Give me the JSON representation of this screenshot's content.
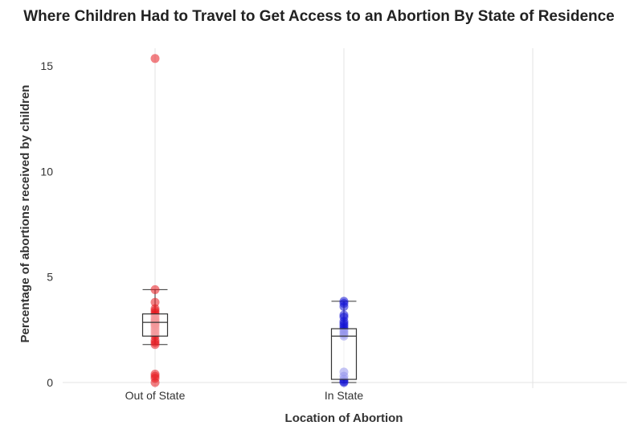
{
  "chart_data": {
    "type": "box",
    "title": "Where Children Had to Travel to Get Access to an Abortion By State of Residence",
    "xlabel": "Location of Abortion",
    "ylabel": "Percentage of abortions received by children",
    "categories": [
      "Out of State",
      "In State"
    ],
    "yticks": [
      0,
      5,
      10,
      15
    ],
    "ylim": [
      0,
      15.9
    ],
    "grid": "vertical",
    "series": [
      {
        "category": "Out of State",
        "color": "#e8191f",
        "box": {
          "min": 1.8,
          "q1": 2.2,
          "median": 2.85,
          "q3": 3.25,
          "max": 4.4
        },
        "points": [
          15.35,
          4.4,
          3.8,
          3.5,
          3.4,
          3.3,
          3.2,
          3.1,
          3.0,
          2.95,
          2.9,
          2.85,
          2.8,
          2.75,
          2.7,
          2.6,
          2.5,
          2.4,
          2.3,
          2.2,
          2.0,
          1.9,
          1.8,
          0.4,
          0.3,
          0.2,
          0.0
        ]
      },
      {
        "category": "In State",
        "color": "#1313d6",
        "box": {
          "min": 0.0,
          "q1": 0.15,
          "median": 2.2,
          "q3": 2.55,
          "max": 3.85
        },
        "points": [
          3.85,
          3.75,
          3.6,
          3.2,
          3.1,
          2.9,
          2.8,
          2.7,
          2.6,
          2.5,
          2.4,
          2.3,
          2.2,
          0.5,
          0.3,
          0.15,
          0.05,
          0.0
        ]
      }
    ]
  }
}
